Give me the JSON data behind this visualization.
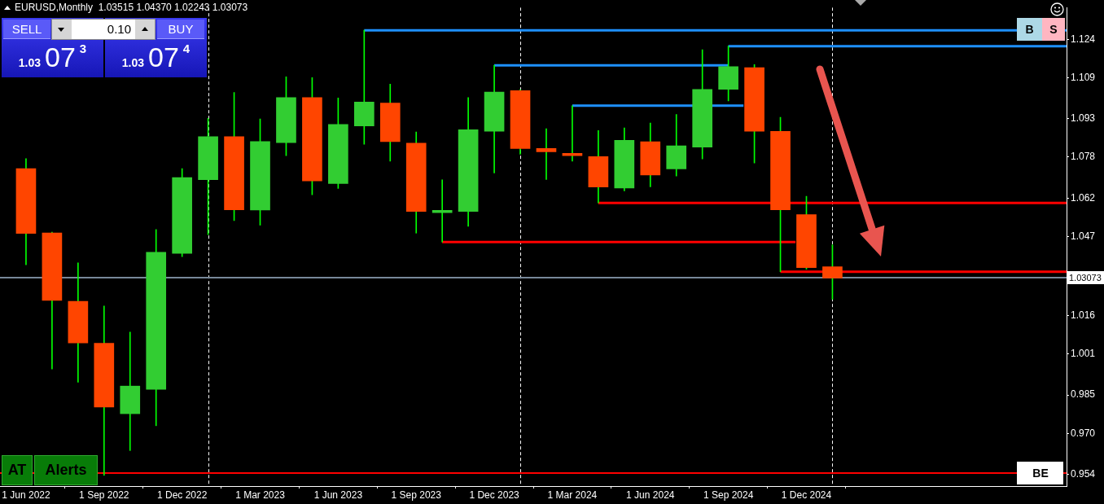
{
  "chart_data": {
    "type": "candlestick",
    "title": "EURUSD,Monthly  1.03515 1.04370 1.02243 1.03073",
    "x": [
      "2022-06",
      "2022-07",
      "2022-08",
      "2022-09",
      "2022-10",
      "2022-11",
      "2022-12",
      "2023-01",
      "2023-02",
      "2023-03",
      "2023-04",
      "2023-05",
      "2023-06",
      "2023-07",
      "2023-08",
      "2023-09",
      "2023-10",
      "2023-11",
      "2023-12",
      "2024-01",
      "2024-02",
      "2024-03",
      "2024-04",
      "2024-05",
      "2024-06",
      "2024-07",
      "2024-08",
      "2024-09",
      "2024-10",
      "2024-11",
      "2024-12",
      "2025-01"
    ],
    "ohlc": [
      [
        1.0735,
        1.0774,
        1.0359,
        1.0482
      ],
      [
        1.0484,
        1.0487,
        0.9952,
        1.022
      ],
      [
        1.0216,
        1.0367,
        0.99,
        1.0054
      ],
      [
        1.0052,
        1.0198,
        0.9536,
        0.9803
      ],
      [
        0.9777,
        1.0096,
        0.9633,
        0.9885
      ],
      [
        0.9872,
        1.0497,
        0.973,
        1.0408
      ],
      [
        1.0404,
        1.0735,
        1.0391,
        1.07
      ],
      [
        1.0692,
        1.0932,
        1.0477,
        1.086
      ],
      [
        1.086,
        1.1033,
        1.0532,
        1.0574
      ],
      [
        1.0573,
        1.0929,
        1.0514,
        1.0841
      ],
      [
        1.0837,
        1.1094,
        1.0786,
        1.1013
      ],
      [
        1.1013,
        1.1091,
        1.0633,
        1.0687
      ],
      [
        1.0677,
        1.1011,
        1.0658,
        1.0908
      ],
      [
        1.0902,
        1.1276,
        1.083,
        1.0995
      ],
      [
        1.0991,
        1.1065,
        1.0764,
        1.0841
      ],
      [
        1.0835,
        1.0878,
        1.0483,
        1.0568
      ],
      [
        1.0563,
        1.0691,
        1.0448,
        1.0572
      ],
      [
        1.0568,
        1.1013,
        1.051,
        1.0887
      ],
      [
        1.0881,
        1.1139,
        1.0718,
        1.1034
      ],
      [
        1.104,
        1.1044,
        1.0791,
        1.0814
      ],
      [
        1.0814,
        1.0891,
        1.0693,
        1.0801
      ],
      [
        1.0795,
        1.0981,
        1.0764,
        1.0786
      ],
      [
        1.0782,
        1.0884,
        1.0601,
        1.0663
      ],
      [
        1.0659,
        1.0894,
        1.0648,
        1.0846
      ],
      [
        1.084,
        1.0913,
        1.0664,
        1.071
      ],
      [
        1.0734,
        1.0947,
        1.0706,
        1.0824
      ],
      [
        1.0819,
        1.12,
        1.0773,
        1.1045
      ],
      [
        1.1045,
        1.1214,
        1.1,
        1.1134
      ],
      [
        1.113,
        1.1142,
        1.0757,
        1.0881
      ],
      [
        1.0881,
        1.0936,
        1.0332,
        1.0574
      ],
      [
        1.0555,
        1.0627,
        1.0342,
        1.0348
      ],
      [
        1.03515,
        1.0437,
        1.02243,
        1.03073
      ]
    ],
    "colors": [
      "#ff4500",
      "#ff4500",
      "#ff4500",
      "#ff4500",
      "#32cd32",
      "#32cd32",
      "#32cd32",
      "#32cd32",
      "#ff4500",
      "#32cd32",
      "#32cd32",
      "#ff4500",
      "#32cd32",
      "#32cd32",
      "#ff4500",
      "#ff4500",
      "#32cd32",
      "#32cd32",
      "#32cd32",
      "#ff4500",
      "#ff4500",
      "#ff4500",
      "#ff4500",
      "#32cd32",
      "#ff4500",
      "#32cd32",
      "#32cd32",
      "#32cd32",
      "#ff4500",
      "#ff4500",
      "#ff4500",
      "#ff4500"
    ],
    "color": "#00ff00",
    "xlim": [
      "2022-05",
      "2025-10"
    ],
    "xticks": [
      {
        "value": "2022-06",
        "label": "1 Jun 2022"
      },
      {
        "value": "2022-09",
        "label": "1 Sep 2022"
      },
      {
        "value": "2022-12",
        "label": "1 Dec 2022"
      },
      {
        "value": "2023-03",
        "label": "1 Mar 2023"
      },
      {
        "value": "2023-06",
        "label": "1 Jun 2023"
      },
      {
        "value": "2023-09",
        "label": "1 Sep 2023"
      },
      {
        "value": "2023-12",
        "label": "1 Dec 2023"
      },
      {
        "value": "2024-03",
        "label": "1 Mar 2024"
      },
      {
        "value": "2024-06",
        "label": "1 Jun 2024"
      },
      {
        "value": "2024-09",
        "label": "1 Sep 2024"
      },
      {
        "value": "2024-12",
        "label": "1 Dec 2024"
      }
    ],
    "ylim": [
      0.9494,
      1.1365
    ],
    "yticks": [
      0.954,
      {
        "value": 0.97,
        "label": "0.970"
      },
      0.985,
      1.001,
      1.016,
      1.047,
      1.062,
      1.078,
      1.093,
      1.109,
      1.124
    ],
    "series": [
      {
        "type": "line",
        "x": [
          "2023-07",
          "2025-10"
        ],
        "values": [
          1.1276,
          1.1276
        ],
        "color": "#1e90ff"
      },
      {
        "type": "line",
        "x": [
          "2024-09",
          "2025-10"
        ],
        "values": [
          1.1214,
          1.1214
        ],
        "color": "#1e90ff"
      },
      {
        "type": "line",
        "x": [
          "2023-12",
          "2024-09"
        ],
        "values": [
          1.1139,
          1.1139
        ],
        "color": "#1e90ff"
      },
      {
        "type": "line",
        "x": [
          "2024-03",
          "2024-09-19"
        ],
        "values": [
          1.0981,
          1.0981
        ],
        "color": "#1e90ff"
      },
      {
        "type": "line",
        "x": [
          "2023-10",
          "2024-11-19"
        ],
        "values": [
          1.0448,
          1.0448
        ],
        "color": "#ff0000"
      },
      {
        "type": "line",
        "x": [
          "2024-04",
          "2025-10"
        ],
        "values": [
          1.0601,
          1.0601
        ],
        "color": "#ff0000"
      },
      {
        "type": "line",
        "x": [
          "2024-11",
          "2025-10"
        ],
        "values": [
          1.0332,
          1.0332
        ],
        "color": "#ff0000"
      }
    ],
    "ref_lines": [
      {
        "axis": "x",
        "value": "2023-01",
        "color": "#ffffff",
        "line_style": "dashed"
      },
      {
        "axis": "x",
        "value": "2024-01",
        "color": "#ffffff",
        "line_style": "dashed"
      },
      {
        "axis": "x",
        "value": "2025-01",
        "color": "#ffffff",
        "line_style": "dashed"
      },
      {
        "axis": "y",
        "value": 1.03073,
        "label": "1.03073",
        "color": "#778899"
      },
      {
        "axis": "y",
        "value": 0.9544,
        "color": "#ff0000"
      }
    ],
    "annotations": [
      "SELL",
      "0.10",
      "BUY",
      "1.0307$^{3}$",
      "1.0307$^{4}$",
      "B",
      "S",
      "AT",
      "Alerts",
      {
        "text": "BE",
        "x": "2025-09",
        "y": 0.9544
      }
    ],
    "marker": "none"
  }
}
